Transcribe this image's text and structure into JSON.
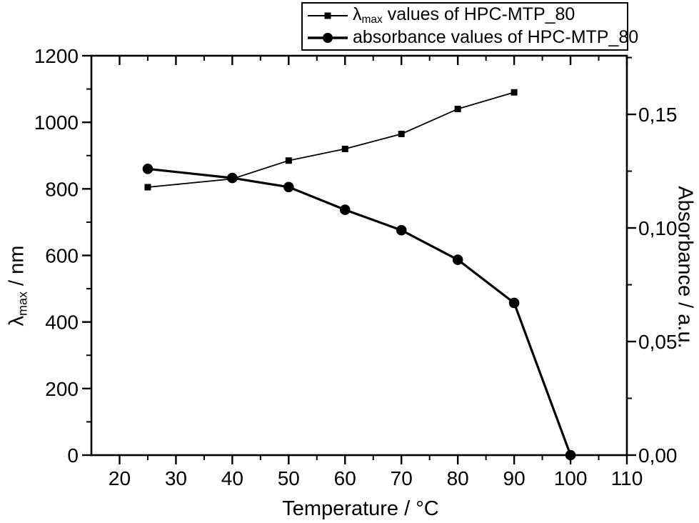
{
  "figure": {
    "background": "#ffffff",
    "foreground": "#000000"
  },
  "legend": {
    "row1": {
      "marker": "square",
      "lambda": "λ",
      "sub": "max",
      "rest": " values of HPC-MTP_80"
    },
    "row2": {
      "marker": "circle",
      "label": "absorbance values of HPC-MTP_80"
    }
  },
  "axes": {
    "x": {
      "title": "Temperature / °C",
      "min": 15,
      "max": 110,
      "majors": [
        20,
        30,
        40,
        50,
        60,
        70,
        80,
        90,
        100,
        110
      ],
      "minors": [
        25,
        35,
        45,
        55,
        65,
        75,
        85,
        95,
        105
      ]
    },
    "y_left": {
      "title_lambda": "λ",
      "title_sub": "max",
      "title_rest": " / nm",
      "min": 0,
      "max": 1200,
      "majors": [
        0,
        200,
        400,
        600,
        800,
        1000,
        1200
      ],
      "minors": [
        100,
        300,
        500,
        700,
        900,
        1100
      ]
    },
    "y_right": {
      "title": "Absorbance / a.u.",
      "min": 0,
      "max": 0.1758,
      "majors": [
        {
          "value": 0.0,
          "label": "0,00"
        },
        {
          "value": 0.05,
          "label": "0,05"
        },
        {
          "value": 0.1,
          "label": "0,10"
        },
        {
          "value": 0.15,
          "label": "0,15"
        }
      ],
      "minors": [
        0.025,
        0.075,
        0.125,
        0.175
      ]
    }
  },
  "chart_data": {
    "type": "line",
    "title": "",
    "xlabel": "Temperature / °C",
    "ylabel_left": "λmax / nm",
    "ylabel_right": "Absorbance / a.u.",
    "xlim": [
      15,
      110
    ],
    "ylim_left": [
      0,
      1200
    ],
    "ylim_right": [
      0,
      0.1758
    ],
    "grid": false,
    "legend_position": "top-right-outside",
    "series": [
      {
        "name": "λmax values of HPC-MTP_80",
        "axis": "left",
        "marker": "square",
        "line_width": 1.8,
        "x": [
          25,
          40,
          50,
          60,
          70,
          80,
          90
        ],
        "y": [
          805,
          830,
          885,
          920,
          965,
          1040,
          1090
        ]
      },
      {
        "name": "absorbance values of HPC-MTP_80",
        "axis": "right",
        "marker": "circle",
        "line_width": 3.2,
        "x": [
          25,
          40,
          50,
          60,
          70,
          80,
          90,
          100
        ],
        "y": [
          0.126,
          0.122,
          0.118,
          0.108,
          0.099,
          0.086,
          0.067,
          0.0
        ]
      }
    ]
  }
}
